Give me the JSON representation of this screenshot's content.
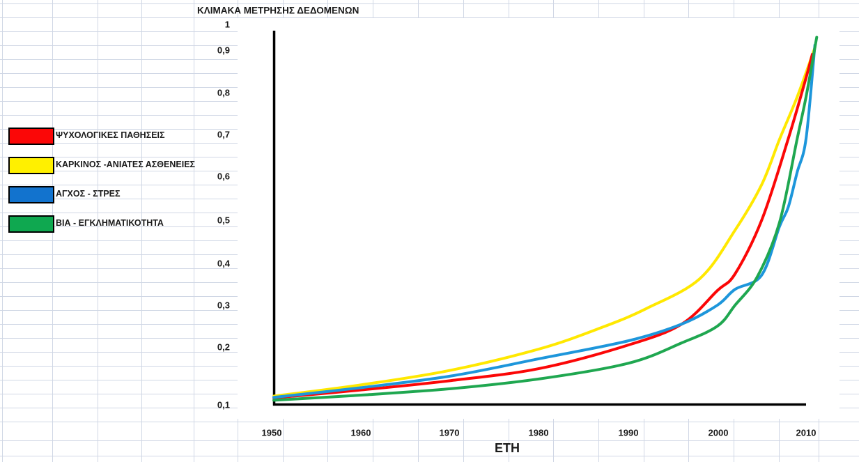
{
  "title": "ΚΛΙΜΑΚΑ ΜΕΤΡΗΣΗΣ ΔΕΔΟΜΕΝΩΝ",
  "axes": {
    "y_ticks": [
      "1",
      "0,9",
      "0,8",
      "0,7",
      "0,6",
      "0,5",
      "0,4",
      "0,3",
      "0,2",
      "0,1"
    ],
    "x_ticks": [
      "1950",
      "1960",
      "1970",
      "1980",
      "1990",
      "2000",
      "2010"
    ],
    "x_axis_title": "ΕΤΗ"
  },
  "legend": {
    "items": [
      {
        "label": "ΨΥΧΟΛΟΓΙΚΕΣ ΠΑΘΗΣΕΙΣ",
        "color": "#FB0707"
      },
      {
        "label": "ΚΑΡΚΙΝΟΣ -ΑΝΙΑΤΕΣ ΑΣΘΕΝΕΙΕΣ",
        "color": "#FFF000"
      },
      {
        "label": "ΑΓΧΟΣ - ΣΤΡΕΣ",
        "color": "#1273CE"
      },
      {
        "label": "ΒΙΑ - ΕΓΚΛΗΜΑΤΙΚΟΤΗΤΑ",
        "color": "#0FA850"
      }
    ]
  },
  "colors": {
    "gridline": "#D0D7E5",
    "axis": "#000000",
    "chart_background": "#FFFFFF",
    "text": "#1A1A1A"
  },
  "chart_data": {
    "type": "line",
    "title": "ΚΛΙΜΑΚΑ ΜΕΤΡΗΣΗΣ ΔΕΔΟΜΕΝΩΝ",
    "xlabel": "ΕΤΗ",
    "ylabel": "",
    "x_range": [
      1950,
      2011
    ],
    "y_range": [
      0.1,
      1.0
    ],
    "y_tick_step": 0.1,
    "grid": false,
    "legend_position": "left",
    "series": [
      {
        "id": "psychological",
        "name": "ΨΥΧΟΛΟΓΙΚΕΣ ΠΑΘΗΣΕΙΣ",
        "color": "#FB0707",
        "points": [
          [
            1950,
            0.112
          ],
          [
            1960,
            0.126
          ],
          [
            1970,
            0.142
          ],
          [
            1980,
            0.163
          ],
          [
            1990,
            0.205
          ],
          [
            1996,
            0.255
          ],
          [
            2000,
            0.335
          ],
          [
            2002,
            0.375
          ],
          [
            2005,
            0.5
          ],
          [
            2008,
            0.69
          ],
          [
            2010,
            0.835
          ],
          [
            2010.7,
            0.89
          ]
        ]
      },
      {
        "id": "cancer",
        "name": "ΚΑΡΚΙΝΟΣ -ΑΝΙΑΤΕΣ ΑΣΘΕΝΕΙΕΣ",
        "color": "#FFE800",
        "points": [
          [
            1950,
            0.115
          ],
          [
            1960,
            0.135
          ],
          [
            1970,
            0.16
          ],
          [
            1980,
            0.197
          ],
          [
            1987,
            0.247
          ],
          [
            1992,
            0.292
          ],
          [
            1998,
            0.363
          ],
          [
            2002,
            0.477
          ],
          [
            2005,
            0.581
          ],
          [
            2007,
            0.688
          ],
          [
            2009,
            0.79
          ],
          [
            2011,
            0.91
          ]
        ]
      },
      {
        "id": "anxiety",
        "name": "ΑΓΧΟΣ - ΣΤΡΕΣ",
        "color": "#1D96DB",
        "points": [
          [
            1950,
            0.113
          ],
          [
            1960,
            0.13
          ],
          [
            1970,
            0.15
          ],
          [
            1980,
            0.18
          ],
          [
            1990,
            0.215
          ],
          [
            1996,
            0.255
          ],
          [
            2000,
            0.3
          ],
          [
            2002,
            0.338
          ],
          [
            2005,
            0.372
          ],
          [
            2007,
            0.485
          ],
          [
            2008,
            0.53
          ],
          [
            2009,
            0.61
          ],
          [
            2010,
            0.69
          ],
          [
            2011,
            0.92
          ]
        ]
      },
      {
        "id": "violence",
        "name": "ΒΙΑ - ΕΓΚΛΗΜΑΤΙΚΟΤΗΤΑ",
        "color": "#1FA750",
        "points": [
          [
            1950,
            0.108
          ],
          [
            1960,
            0.117
          ],
          [
            1970,
            0.128
          ],
          [
            1980,
            0.145
          ],
          [
            1990,
            0.172
          ],
          [
            1996,
            0.21
          ],
          [
            2000,
            0.25
          ],
          [
            2002,
            0.3
          ],
          [
            2004.5,
            0.368
          ],
          [
            2007,
            0.494
          ],
          [
            2009,
            0.69
          ],
          [
            2010,
            0.79
          ],
          [
            2011.2,
            0.95
          ]
        ]
      }
    ],
    "paint_order": [
      "cancer",
      "psychological",
      "anxiety",
      "violence"
    ]
  }
}
